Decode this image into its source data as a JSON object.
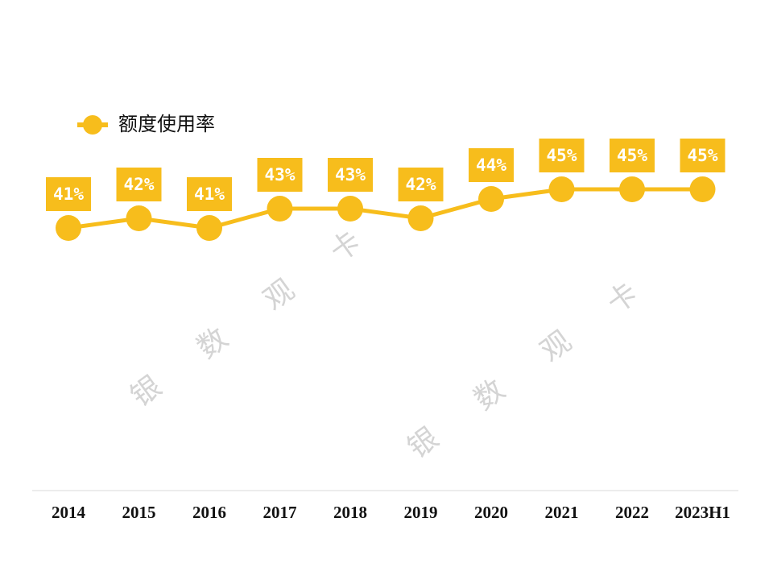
{
  "chart_data": {
    "type": "line",
    "categories": [
      "2014",
      "2015",
      "2016",
      "2017",
      "2018",
      "2019",
      "2020",
      "2021",
      "2022",
      "2023H1"
    ],
    "series": [
      {
        "name": "额度使用率",
        "color": "#f7bd1c",
        "values": [
          41,
          42,
          41,
          43,
          43,
          42,
          44,
          45,
          45,
          45
        ],
        "value_labels": [
          "41%",
          "42%",
          "41%",
          "43%",
          "43%",
          "42%",
          "44%",
          "45%",
          "45%",
          "45%"
        ]
      }
    ],
    "watermark": "银数观卡"
  }
}
